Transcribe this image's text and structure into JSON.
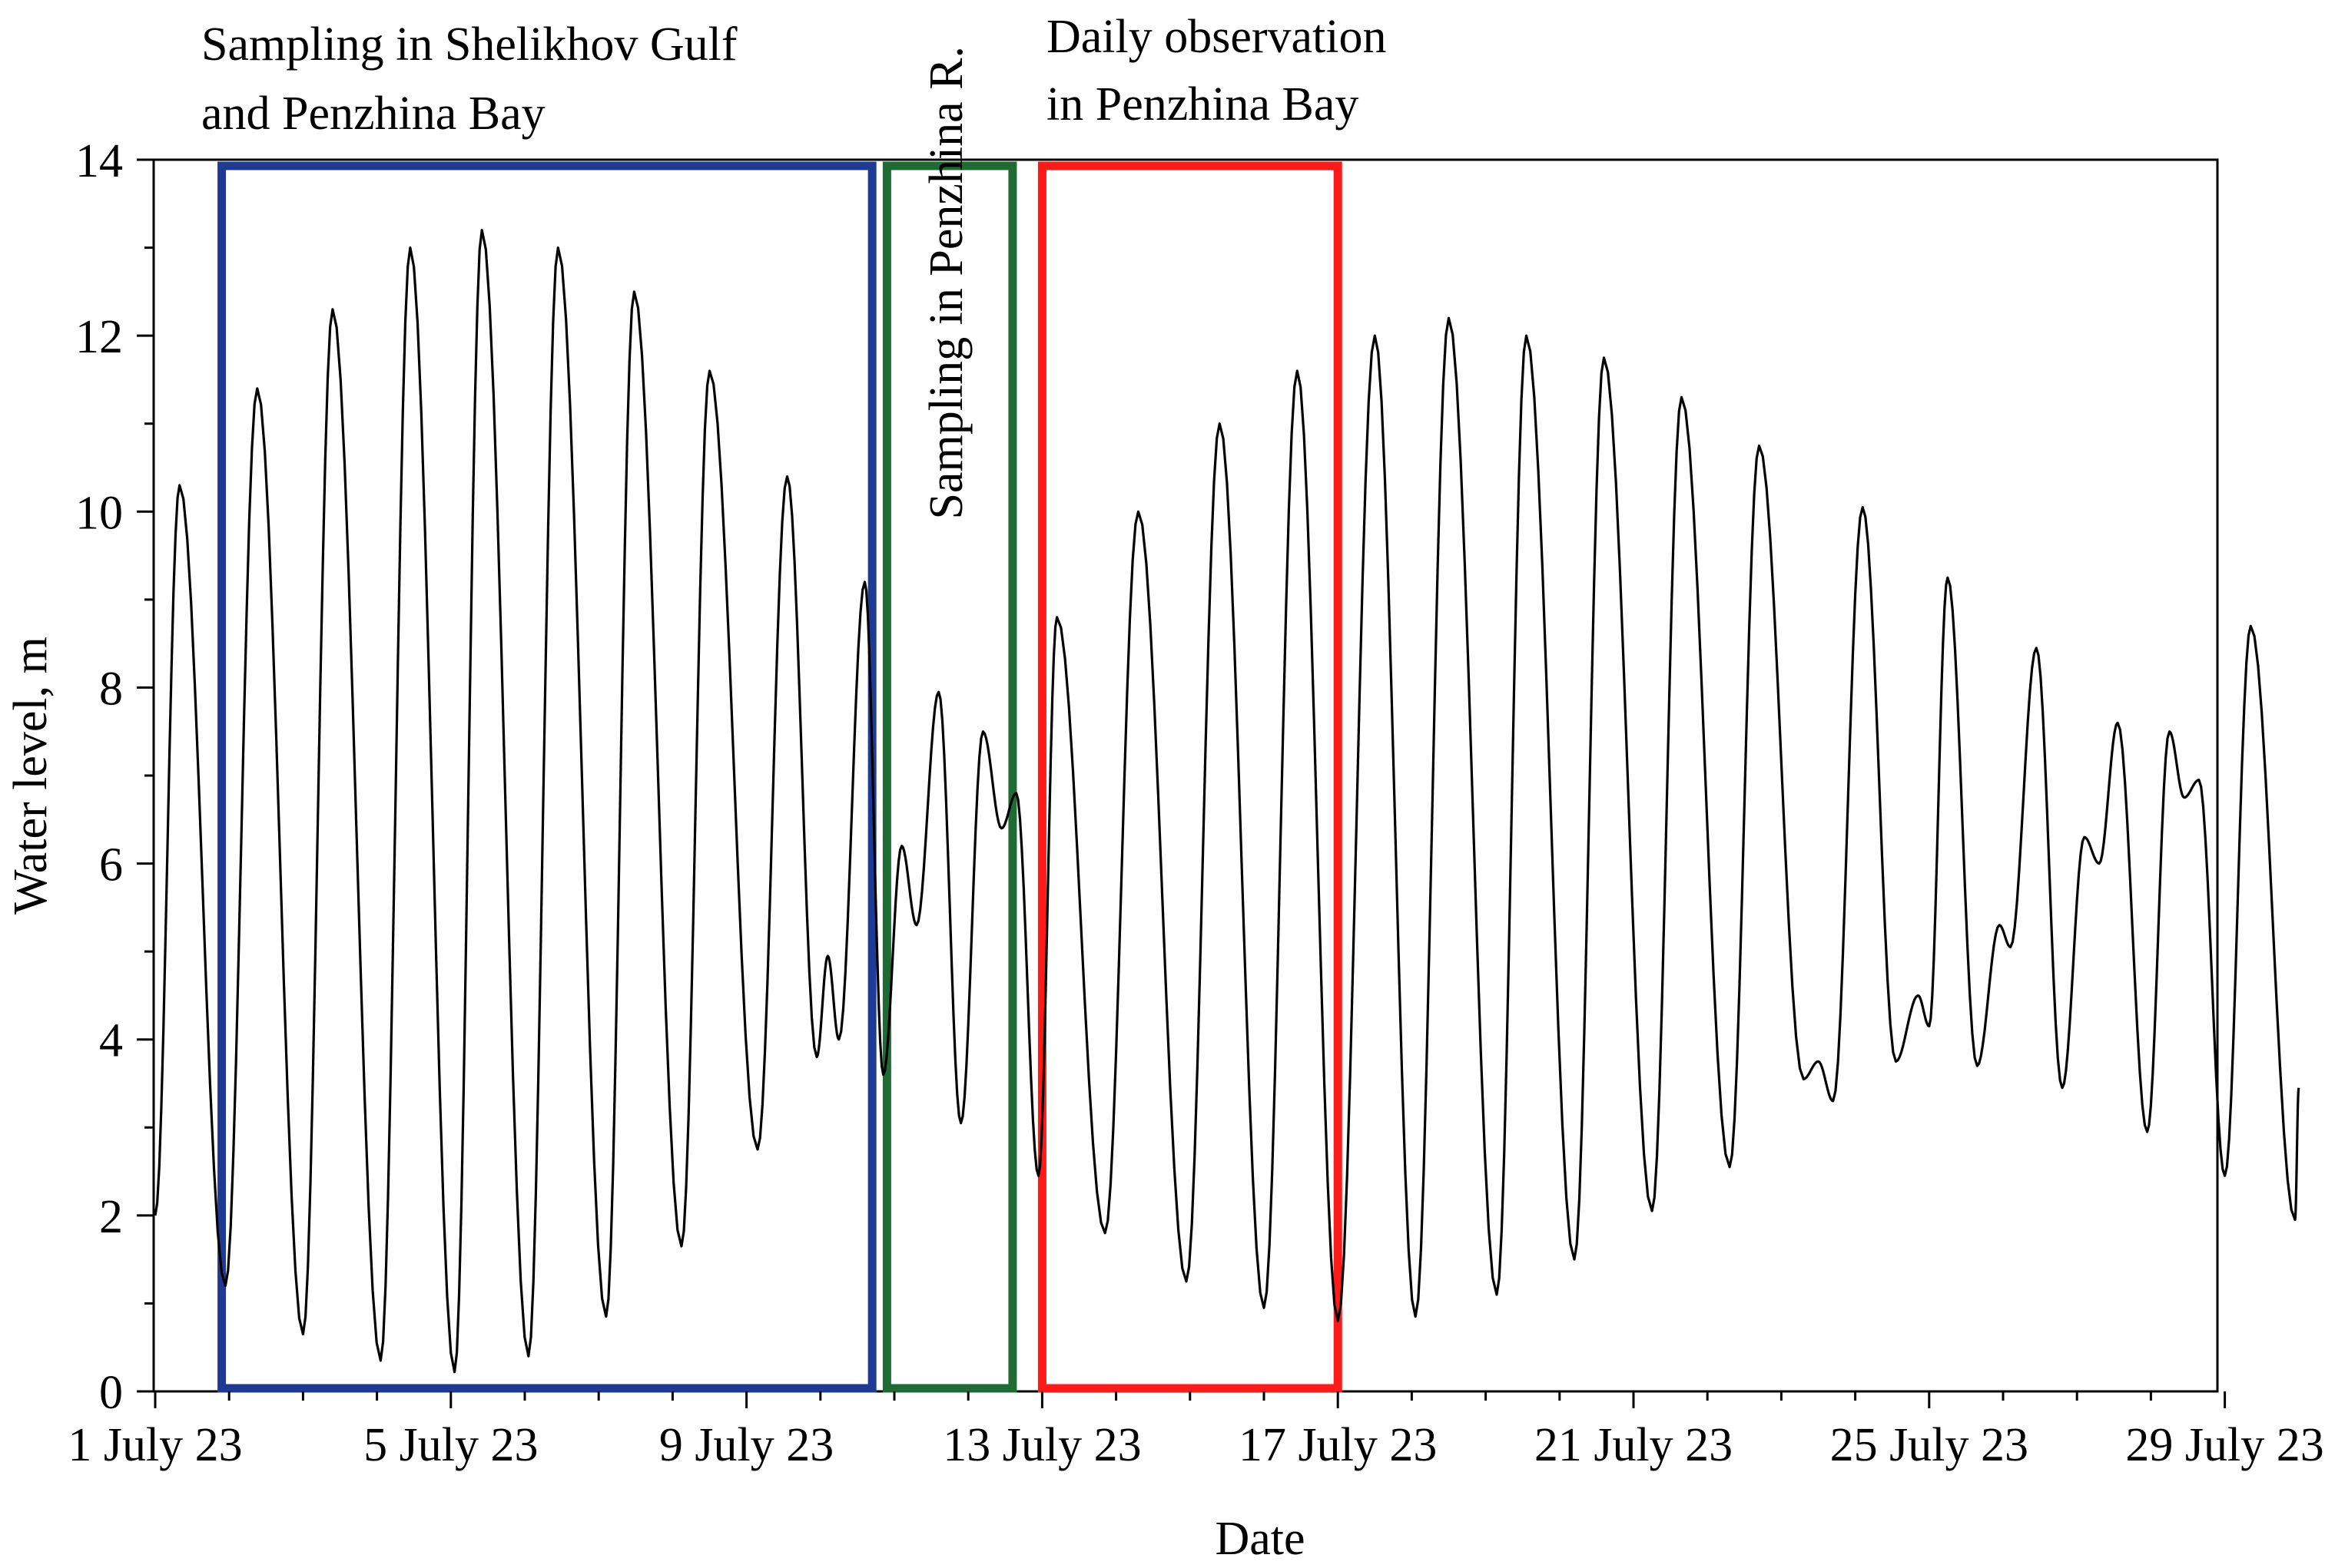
{
  "chart_data": {
    "type": "line",
    "title": "",
    "xlabel": "Date",
    "ylabel": "Water level, m",
    "xlim": [
      0,
      28
    ],
    "ylim": [
      0,
      14
    ],
    "grid": false,
    "x_unit": "days since 1 July 23 00:00",
    "y_ticks": [
      0,
      2,
      4,
      6,
      8,
      10,
      12,
      14
    ],
    "x_ticks": [
      {
        "day": 0,
        "label": "1 July 23"
      },
      {
        "day": 4,
        "label": "5 July 23"
      },
      {
        "day": 8,
        "label": "9 July 23"
      },
      {
        "day": 12,
        "label": "13 July 23"
      },
      {
        "day": 16,
        "label": "17 July 23"
      },
      {
        "day": 20,
        "label": "21 July 23"
      },
      {
        "day": 24,
        "label": "25 July 23"
      },
      {
        "day": 28,
        "label": "29 July 23"
      }
    ],
    "periods": [
      {
        "name": "shelikhov",
        "label_lines": [
          "Sampling in Shelikhov Gulf",
          "and Penzhina Bay"
        ],
        "start": 0.9,
        "end": 9.7,
        "ymax": 14,
        "color": "#1f3a93"
      },
      {
        "name": "penzhina-river",
        "label_lines": [
          "Sampling in Penzhina R."
        ],
        "start": 9.9,
        "end": 11.6,
        "ymax": 14,
        "color": "#1e6b34"
      },
      {
        "name": "daily",
        "label_lines": [
          "Daily observation",
          "in Penzhina Bay"
        ],
        "start": 12.0,
        "end": 16.0,
        "ymax": 14,
        "color": "#ff1a1a"
      }
    ],
    "series": [
      {
        "name": "Water level",
        "color": "#000000",
        "extrema": [
          [
            0.0,
            2.0
          ],
          [
            0.33,
            10.3
          ],
          [
            0.95,
            1.2
          ],
          [
            1.38,
            11.4
          ],
          [
            2.0,
            0.65
          ],
          [
            2.4,
            12.3
          ],
          [
            3.05,
            0.35
          ],
          [
            3.45,
            13.0
          ],
          [
            4.05,
            0.22
          ],
          [
            4.42,
            13.2
          ],
          [
            5.05,
            0.4
          ],
          [
            5.45,
            13.0
          ],
          [
            6.1,
            0.85
          ],
          [
            6.48,
            12.5
          ],
          [
            7.12,
            1.65
          ],
          [
            7.5,
            11.6
          ],
          [
            8.15,
            2.75
          ],
          [
            8.55,
            10.4
          ],
          [
            8.95,
            3.8
          ],
          [
            9.1,
            4.95
          ],
          [
            9.25,
            4.0
          ],
          [
            9.6,
            9.2
          ],
          [
            9.85,
            3.6
          ],
          [
            10.1,
            6.2
          ],
          [
            10.3,
            5.3
          ],
          [
            10.6,
            7.95
          ],
          [
            10.9,
            3.05
          ],
          [
            11.2,
            7.5
          ],
          [
            11.45,
            6.4
          ],
          [
            11.65,
            6.8
          ],
          [
            11.95,
            2.45
          ],
          [
            12.2,
            8.8
          ],
          [
            12.85,
            1.8
          ],
          [
            13.3,
            10.0
          ],
          [
            13.95,
            1.25
          ],
          [
            14.4,
            11.0
          ],
          [
            15.0,
            0.95
          ],
          [
            15.45,
            11.6
          ],
          [
            16.0,
            0.8
          ],
          [
            16.5,
            12.0
          ],
          [
            17.05,
            0.85
          ],
          [
            17.5,
            12.2
          ],
          [
            18.15,
            1.1
          ],
          [
            18.55,
            12.0
          ],
          [
            19.2,
            1.5
          ],
          [
            19.6,
            11.75
          ],
          [
            20.25,
            2.05
          ],
          [
            20.65,
            11.3
          ],
          [
            21.3,
            2.55
          ],
          [
            21.7,
            10.75
          ],
          [
            22.3,
            3.55
          ],
          [
            22.5,
            3.75
          ],
          [
            22.7,
            3.3
          ],
          [
            23.1,
            10.05
          ],
          [
            23.55,
            3.75
          ],
          [
            23.85,
            4.5
          ],
          [
            24.0,
            4.15
          ],
          [
            24.25,
            9.25
          ],
          [
            24.65,
            3.7
          ],
          [
            24.95,
            5.3
          ],
          [
            25.1,
            5.05
          ],
          [
            25.45,
            8.45
          ],
          [
            25.8,
            3.45
          ],
          [
            26.1,
            6.3
          ],
          [
            26.3,
            6.0
          ],
          [
            26.55,
            7.6
          ],
          [
            26.95,
            2.95
          ],
          [
            27.25,
            7.5
          ],
          [
            27.45,
            6.75
          ],
          [
            27.65,
            6.95
          ],
          [
            28.0,
            2.45
          ],
          [
            28.35,
            8.7
          ],
          [
            28.95,
            1.95
          ],
          [
            29.0,
            3.45
          ]
        ]
      }
    ]
  }
}
